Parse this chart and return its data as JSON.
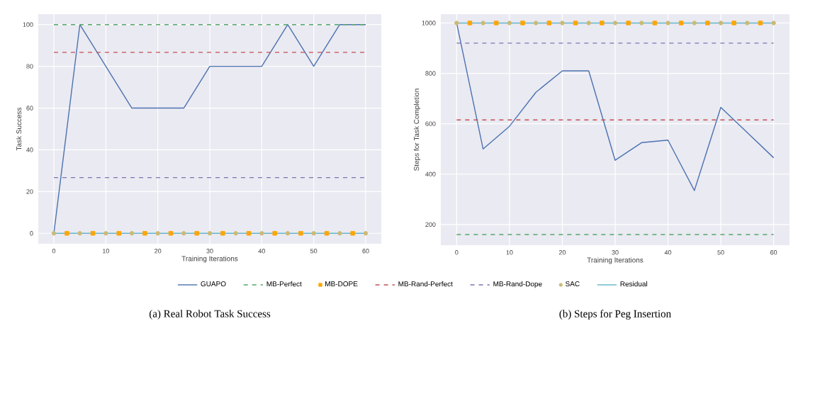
{
  "chart_data": [
    {
      "type": "line",
      "xlabel": "Training Iterations",
      "ylabel": "Task Success",
      "xlim": [
        -3,
        63
      ],
      "ylim": [
        -5,
        105
      ],
      "xticks": [
        0,
        10,
        20,
        30,
        40,
        50,
        60
      ],
      "yticks": [
        0,
        20,
        40,
        60,
        80,
        100
      ],
      "grid": true,
      "legend": "bottom",
      "annotations": [
        "(a) Real Robot Task Success"
      ],
      "series": [
        {
          "name": "GUAPO",
          "color": "#4c72b0",
          "line_style": "solid",
          "x": [
            0,
            5,
            10,
            15,
            20,
            25,
            30,
            35,
            40,
            45,
            50,
            55,
            60
          ],
          "values": [
            0,
            100,
            80,
            60,
            60,
            60,
            80,
            80,
            80,
            100,
            80,
            100,
            100
          ]
        },
        {
          "name": "MB-Perfect",
          "color": "#55a868",
          "line_style": "dashed",
          "x": [
            0,
            60
          ],
          "values": [
            100,
            100
          ]
        },
        {
          "name": "MB-DOPE",
          "type": "scatter",
          "marker": "square",
          "color": "#ffa500",
          "x": [
            2.5,
            7.5,
            12.5,
            17.5,
            22.5,
            27.5,
            32.5,
            37.5,
            42.5,
            47.5,
            52.5,
            57.5
          ],
          "values": [
            0,
            0,
            0,
            0,
            0,
            0,
            0,
            0,
            0,
            0,
            0,
            0
          ]
        },
        {
          "name": "MB-Rand-Perfect",
          "color": "#c44e52",
          "line_style": "dashed",
          "x": [
            0,
            60
          ],
          "values": [
            86.7,
            86.7
          ]
        },
        {
          "name": "MB-Rand-Dope",
          "color": "#8172b2",
          "line_style": "dashed",
          "x": [
            0,
            60
          ],
          "values": [
            26.7,
            26.7
          ]
        },
        {
          "name": "SAC",
          "type": "scatter",
          "marker": "circle",
          "color": "#ccb974",
          "x": [
            0,
            5,
            10,
            15,
            20,
            25,
            30,
            35,
            40,
            45,
            50,
            55,
            60
          ],
          "values": [
            0,
            0,
            0,
            0,
            0,
            0,
            0,
            0,
            0,
            0,
            0,
            0,
            0
          ]
        },
        {
          "name": "Residual",
          "color": "#64b5cd",
          "line_style": "solid",
          "x": [
            0,
            60
          ],
          "values": [
            0,
            0
          ]
        }
      ]
    },
    {
      "type": "line",
      "xlabel": "Training Iterations",
      "ylabel": "Steps for Task Completion",
      "xlim": [
        -3,
        63
      ],
      "ylim": [
        118,
        1035
      ],
      "xticks": [
        0,
        10,
        20,
        30,
        40,
        50,
        60
      ],
      "yticks": [
        200,
        400,
        600,
        800,
        1000
      ],
      "grid": true,
      "annotations": [
        "(b) Steps for Peg Insertion"
      ],
      "series": [
        {
          "color": "#4c72b0",
          "line_style": "solid",
          "x": [
            0,
            5,
            10,
            15,
            20,
            25,
            30,
            35,
            40,
            45,
            50,
            55,
            60
          ],
          "values": [
            1000,
            500,
            590,
            725,
            810,
            810,
            455,
            525,
            535,
            335,
            665,
            565,
            465
          ]
        },
        {
          "color": "#55a868",
          "line_style": "dashed",
          "x": [
            0,
            60
          ],
          "values": [
            160,
            160
          ]
        },
        {
          "color": "#ffa500",
          "type": "scatter",
          "marker": "square",
          "x": [
            2.5,
            7.5,
            12.5,
            17.5,
            22.5,
            27.5,
            32.5,
            37.5,
            42.5,
            47.5,
            52.5,
            57.5
          ],
          "values": [
            1000,
            1000,
            1000,
            1000,
            1000,
            1000,
            1000,
            1000,
            1000,
            1000,
            1000,
            1000
          ]
        },
        {
          "color": "#c44e52",
          "line_style": "dashed",
          "x": [
            0,
            60
          ],
          "values": [
            615,
            615
          ]
        },
        {
          "color": "#8172b2",
          "line_style": "dashed",
          "x": [
            0,
            60
          ],
          "values": [
            920,
            920
          ]
        },
        {
          "color": "#ccb974",
          "type": "scatter",
          "marker": "circle",
          "x": [
            0,
            5,
            10,
            15,
            20,
            25,
            30,
            35,
            40,
            45,
            50,
            55,
            60
          ],
          "values": [
            1000,
            1000,
            1000,
            1000,
            1000,
            1000,
            1000,
            1000,
            1000,
            1000,
            1000,
            1000,
            1000
          ]
        },
        {
          "color": "#64b5cd",
          "line_style": "solid",
          "x": [
            0,
            60
          ],
          "values": [
            1000,
            1000
          ]
        }
      ]
    }
  ]
}
